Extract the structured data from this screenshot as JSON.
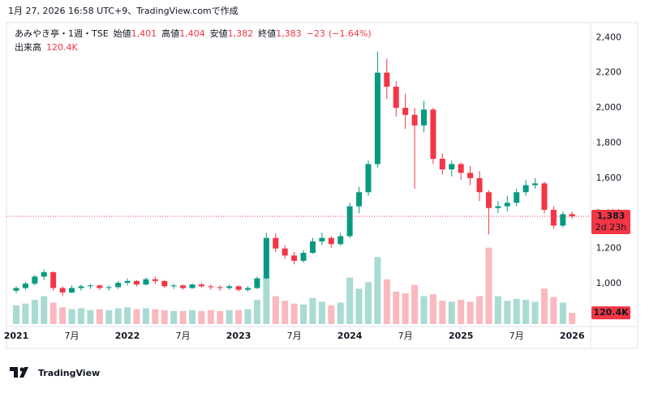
{
  "caption": "1月 27, 2026 16:58 UTC+9、TradingView.comで作成",
  "brand": "TradingView",
  "chart_data": {
    "type": "candlestick",
    "title": "あみやき亭・1週・TSE",
    "legend": [
      {
        "label": "始値",
        "value": {
          "value": 1401,
          "label": "1,401"
        }
      },
      {
        "label": "高値",
        "value": {
          "value": 1404,
          "label": "1,404"
        }
      },
      {
        "label": "安値",
        "value": {
          "value": 1382,
          "label": "1,382"
        }
      },
      {
        "label": "終値",
        "value": {
          "value": 1383,
          "label": "1,383"
        }
      }
    ],
    "change": {
      "value": -23,
      "label": "−23"
    },
    "change_percent": {
      "value": -1.64,
      "label": "(−1.64%)"
    },
    "volume_title": "出来高",
    "volume_last": {
      "value": 120400,
      "label": "120.4K"
    },
    "last_price": {
      "value": 1383,
      "label": "1,383"
    },
    "countdown": "2d 23h",
    "up_color": "#089981",
    "down_color": "#f23645",
    "grid": false,
    "x": [
      "2021-01",
      "2021-02",
      "2021-03",
      "2021-04",
      "2021-05",
      "2021-06",
      "2021-07",
      "2021-08",
      "2021-09",
      "2021-10",
      "2021-11",
      "2021-12",
      "2022-01",
      "2022-02",
      "2022-03",
      "2022-04",
      "2022-05",
      "2022-06",
      "2022-07",
      "2022-08",
      "2022-09",
      "2022-10",
      "2022-11",
      "2022-12",
      "2023-01",
      "2023-02",
      "2023-03",
      "2023-04",
      "2023-05",
      "2023-06",
      "2023-07",
      "2023-08",
      "2023-09",
      "2023-10",
      "2023-11",
      "2023-12",
      "2024-01",
      "2024-02",
      "2024-03",
      "2024-04",
      "2024-05",
      "2024-06",
      "2024-07",
      "2024-08",
      "2024-09",
      "2024-10",
      "2024-11",
      "2024-12",
      "2025-01",
      "2025-02",
      "2025-03",
      "2025-04",
      "2025-05",
      "2025-06",
      "2025-07",
      "2025-08",
      "2025-09",
      "2025-10",
      "2025-11",
      "2025-12",
      "2026-01"
    ],
    "open": [
      960,
      975,
      1000,
      1040,
      1065,
      975,
      950,
      975,
      985,
      990,
      975,
      980,
      1005,
      1015,
      995,
      1025,
      1015,
      985,
      990,
      975,
      995,
      985,
      980,
      975,
      985,
      965,
      975,
      1030,
      1260,
      1200,
      1160,
      1130,
      1175,
      1240,
      1260,
      1225,
      1270,
      1440,
      1520,
      1680,
      2200,
      2120,
      2000,
      1960,
      1900,
      1990,
      1710,
      1650,
      1680,
      1630,
      1600,
      1520,
      1430,
      1440,
      1460,
      1520,
      1560,
      1570,
      1420,
      1330,
      1395
    ],
    "high": [
      985,
      1010,
      1050,
      1080,
      1070,
      985,
      990,
      995,
      1000,
      995,
      990,
      1015,
      1030,
      1020,
      1035,
      1040,
      1020,
      1000,
      995,
      1000,
      1005,
      995,
      990,
      995,
      990,
      985,
      1040,
      1290,
      1285,
      1220,
      1180,
      1190,
      1260,
      1290,
      1270,
      1290,
      1460,
      1550,
      1700,
      2320,
      2280,
      2150,
      2080,
      2000,
      2040,
      2000,
      1740,
      1700,
      1690,
      1670,
      1640,
      1530,
      1470,
      1500,
      1540,
      1590,
      1600,
      1580,
      1440,
      1410,
      1410
    ],
    "low": [
      945,
      965,
      990,
      1020,
      960,
      930,
      945,
      960,
      970,
      965,
      960,
      970,
      990,
      985,
      990,
      1000,
      975,
      970,
      965,
      970,
      975,
      965,
      960,
      965,
      955,
      955,
      970,
      1025,
      1180,
      1140,
      1110,
      1120,
      1170,
      1220,
      1205,
      1215,
      1260,
      1400,
      1500,
      1660,
      2050,
      1950,
      1880,
      1540,
      1860,
      1680,
      1620,
      1610,
      1590,
      1560,
      1470,
      1280,
      1400,
      1410,
      1440,
      1500,
      1540,
      1400,
      1310,
      1320,
      1370
    ],
    "close": [
      975,
      1000,
      1040,
      1065,
      975,
      950,
      975,
      985,
      990,
      975,
      980,
      1005,
      1015,
      995,
      1025,
      1015,
      985,
      990,
      975,
      995,
      985,
      980,
      975,
      985,
      965,
      975,
      1030,
      1260,
      1200,
      1160,
      1130,
      1175,
      1240,
      1260,
      1225,
      1270,
      1440,
      1520,
      1680,
      2200,
      2120,
      2000,
      1960,
      1900,
      1990,
      1710,
      1650,
      1680,
      1630,
      1600,
      1520,
      1430,
      1440,
      1460,
      1520,
      1560,
      1570,
      1420,
      1330,
      1395,
      1383
    ],
    "volume": [
      200000,
      220000,
      260000,
      300000,
      230000,
      180000,
      160000,
      170000,
      150000,
      160000,
      150000,
      170000,
      180000,
      160000,
      170000,
      160000,
      150000,
      140000,
      140000,
      150000,
      140000,
      150000,
      140000,
      150000,
      150000,
      160000,
      260000,
      520000,
      300000,
      250000,
      220000,
      210000,
      280000,
      240000,
      200000,
      230000,
      500000,
      380000,
      450000,
      720000,
      480000,
      350000,
      330000,
      420000,
      300000,
      320000,
      250000,
      240000,
      260000,
      240000,
      300000,
      820000,
      300000,
      250000,
      270000,
      260000,
      240000,
      380000,
      290000,
      230000,
      120400
    ],
    "volume_ylim": [
      0,
      1000000
    ],
    "ylim": [
      770,
      2475
    ],
    "yticks": [
      {
        "value": 1000,
        "label": "1,000"
      },
      {
        "value": 1200,
        "label": "1,200"
      },
      {
        "value": 1400,
        "label": "1,400"
      },
      {
        "value": 1600,
        "label": "1,600"
      },
      {
        "value": 1800,
        "label": "1,800"
      },
      {
        "value": 2000,
        "label": "2,000"
      },
      {
        "value": 2200,
        "label": "2,200"
      },
      {
        "value": 2400,
        "label": "2,400"
      }
    ],
    "xticks": [
      {
        "value": "2021-01",
        "label": "2021"
      },
      {
        "value": "2021-07",
        "label": "7月"
      },
      {
        "value": "2022-01",
        "label": "2022"
      },
      {
        "value": "2022-07",
        "label": "7月"
      },
      {
        "value": "2023-01",
        "label": "2023"
      },
      {
        "value": "2023-07",
        "label": "7月"
      },
      {
        "value": "2024-01",
        "label": "2024"
      },
      {
        "value": "2024-07",
        "label": "7月"
      },
      {
        "value": "2025-01",
        "label": "2025"
      },
      {
        "value": "2025-07",
        "label": "7月"
      },
      {
        "value": "2026-01",
        "label": "2026"
      }
    ]
  }
}
